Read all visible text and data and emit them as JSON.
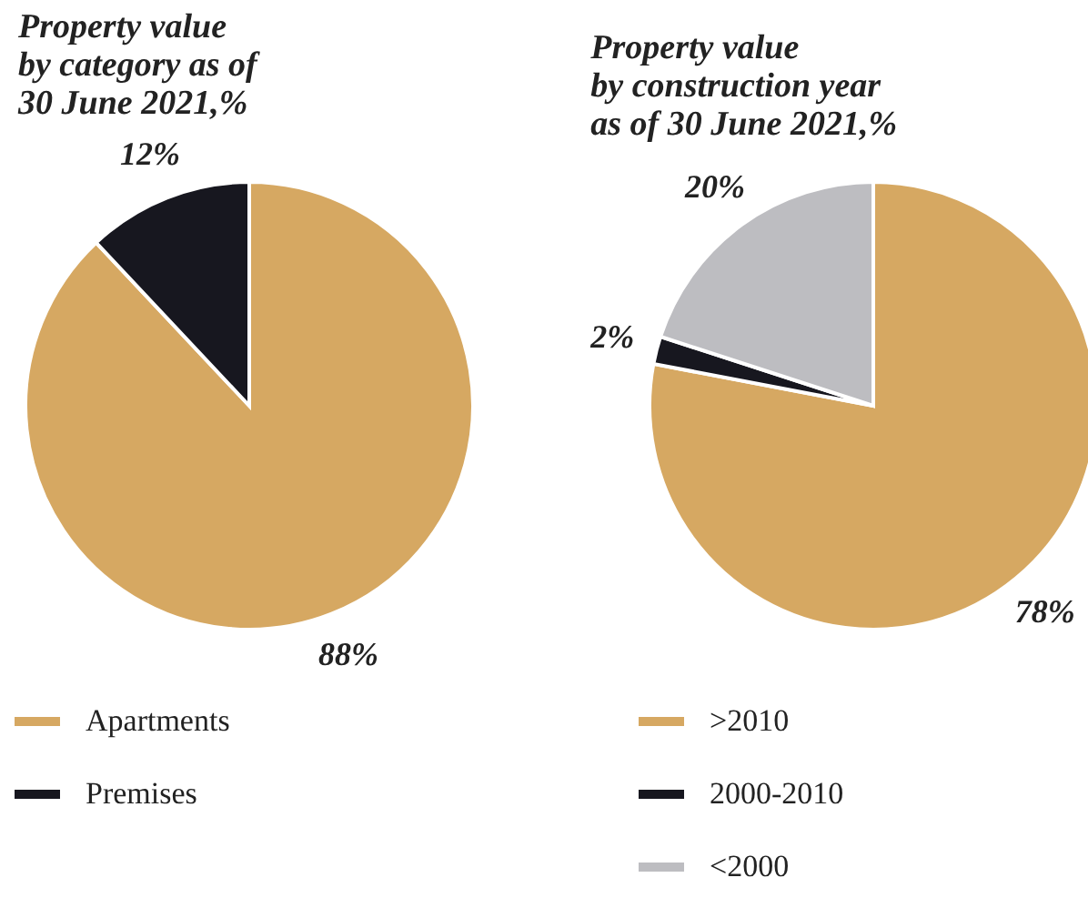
{
  "chart_data": [
    {
      "type": "pie",
      "title": "Property value\nby category as of\n30 June 2021,%",
      "categories": [
        "Apartments",
        "Premises"
      ],
      "values": [
        88,
        12
      ],
      "colors": [
        "#d6a862",
        "#17171f"
      ],
      "value_labels": [
        "88%",
        "12%"
      ],
      "legend": "bottom"
    },
    {
      "type": "pie",
      "title": "Property value\nby construction year\nas of 30 June 2021,%",
      "categories": [
        ">2010",
        "2000-2010",
        "<2000"
      ],
      "values": [
        78,
        2,
        20
      ],
      "colors": [
        "#d6a862",
        "#17171f",
        "#bdbdc1"
      ],
      "value_labels": [
        "78%",
        "2%",
        "20%"
      ],
      "legend": "bottom"
    }
  ]
}
